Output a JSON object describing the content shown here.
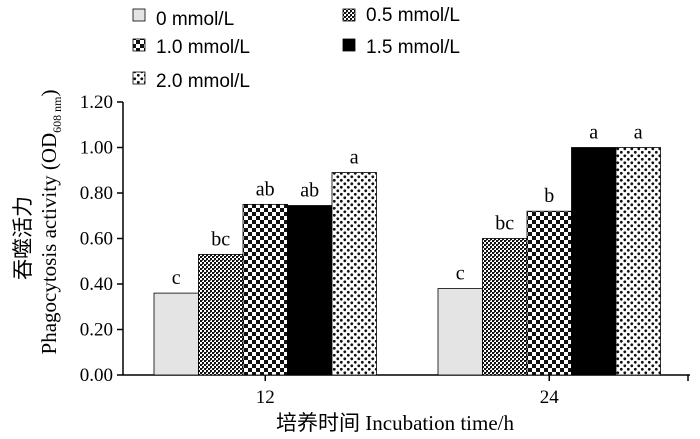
{
  "chart_data": {
    "type": "bar",
    "title": "",
    "xlabel": "培养时间  Incubation time/h",
    "ylabel_cn": "吞噬活力",
    "ylabel_en": "Phagocytosis activity (OD",
    "ylabel_sub": "608 nm",
    "ylabel_close": ")",
    "ylim": [
      0,
      1.2
    ],
    "yticks": [
      "0.00",
      "0.20",
      "0.40",
      "0.60",
      "0.80",
      "1.00",
      "1.20"
    ],
    "categories": [
      "12",
      "24"
    ],
    "series": [
      {
        "name": "0 mmol/L",
        "values": [
          0.36,
          0.38
        ],
        "labels": [
          "c",
          "c"
        ],
        "pattern": "light"
      },
      {
        "name": "0.5 mmol/L",
        "values": [
          0.53,
          0.6
        ],
        "labels": [
          "bc",
          "bc"
        ],
        "pattern": "dots-dense"
      },
      {
        "name": "1.0 mmol/L",
        "values": [
          0.75,
          0.72
        ],
        "labels": [
          "ab",
          "b"
        ],
        "pattern": "checker"
      },
      {
        "name": "1.5 mmol/L",
        "values": [
          0.745,
          1.0
        ],
        "labels": [
          "ab",
          "a"
        ],
        "pattern": "solid"
      },
      {
        "name": "2.0 mmol/L",
        "values": [
          0.89,
          1.0
        ],
        "labels": [
          "a",
          "a"
        ],
        "pattern": "dots-sparse"
      }
    ],
    "legend": "top",
    "grid": false
  }
}
